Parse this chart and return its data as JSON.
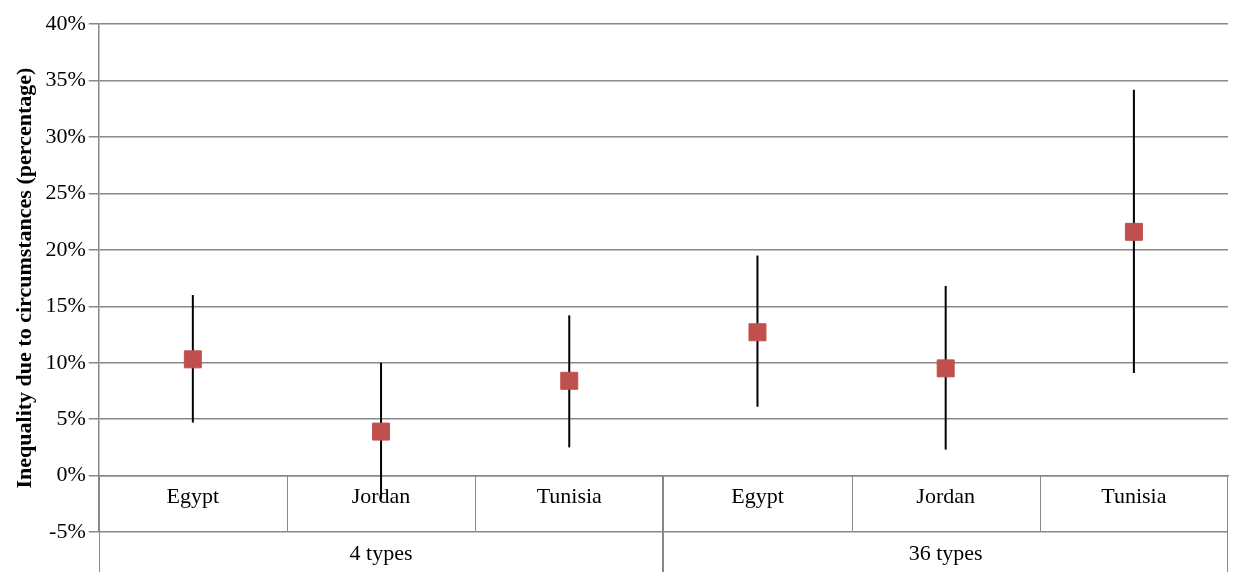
{
  "chart_data": {
    "type": "scatter",
    "ylabel": "Inequality due to circumstances (percentage)",
    "categories": [
      "Egypt",
      "Jordan",
      "Tunisia",
      "Egypt",
      "Jordan",
      "Tunisia"
    ],
    "series": [
      {
        "color": "#c0504d",
        "values": [
          10.3,
          3.9,
          8.4,
          12.7,
          9.5,
          21.6
        ],
        "errors": [
          [
            4.7,
            16.0
          ],
          [
            -2.1,
            10.0
          ],
          [
            2.5,
            14.2
          ],
          [
            6.1,
            19.5
          ],
          [
            2.3,
            16.8
          ],
          [
            9.1,
            34.2
          ]
        ]
      }
    ],
    "annotations": [
      "4 types",
      "36 types"
    ],
    "ylim": [
      -5,
      40
    ],
    "yticks": [
      {
        "value": -5,
        "label": "-5%"
      },
      {
        "value": 0,
        "label": "0%"
      },
      {
        "value": 5,
        "label": "5%"
      },
      {
        "value": 10,
        "label": "10%"
      },
      {
        "value": 15,
        "label": "15%"
      },
      {
        "value": 20,
        "label": "20%"
      },
      {
        "value": 25,
        "label": "25%"
      },
      {
        "value": 30,
        "label": "30%"
      },
      {
        "value": 35,
        "label": "35%"
      },
      {
        "value": 40,
        "label": "40%"
      }
    ],
    "grid": "y",
    "marker": "square",
    "legend": false
  }
}
